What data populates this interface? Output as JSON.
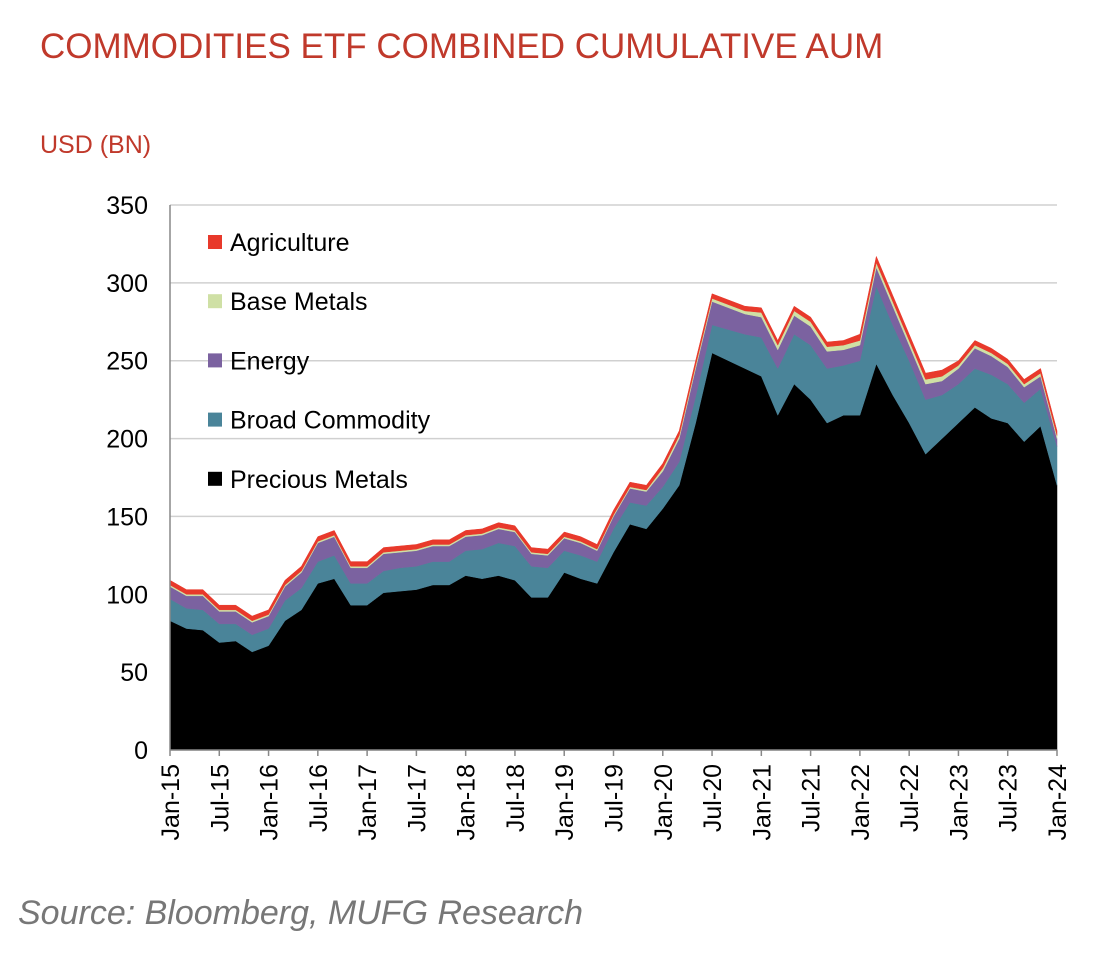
{
  "chart_data": {
    "type": "stacked_area",
    "title": "COMMODITIES ETF COMBINED CUMULATIVE AUM",
    "y_label": "USD (BN)",
    "source": "Source: Bloomberg, MUFG Research",
    "categories": [
      "Jan-15",
      null,
      null,
      "Jul-15",
      null,
      null,
      "Jan-16",
      null,
      null,
      "Jul-16",
      null,
      null,
      "Jan-17",
      null,
      null,
      "Jul-17",
      null,
      null,
      "Jan-18",
      null,
      null,
      "Jul-18",
      null,
      null,
      "Jan-19",
      null,
      null,
      "Jul-19",
      null,
      null,
      "Jan-20",
      null,
      null,
      "Jul-20",
      null,
      null,
      "Jan-21",
      null,
      null,
      "Jul-21",
      null,
      null,
      "Jan-22",
      null,
      null,
      "Jul-22",
      null,
      null,
      "Jan-23",
      null,
      null,
      "Jul-23",
      null,
      null,
      "Jan-24"
    ],
    "series": [
      {
        "name": "Precious Metals",
        "color": "#000000",
        "values": [
          83,
          78,
          77,
          69,
          70,
          63,
          67,
          83,
          90,
          107,
          110,
          93,
          93,
          101,
          102,
          103,
          106,
          106,
          112,
          110,
          112,
          109,
          98,
          98,
          114,
          110,
          107,
          127,
          145,
          142,
          155,
          170,
          210,
          255,
          250,
          245,
          240,
          215,
          235,
          225,
          210,
          215,
          215,
          248,
          228,
          210,
          190,
          200,
          210,
          220,
          213,
          210,
          198,
          208,
          170
        ]
      },
      {
        "name": "Broad Commodity",
        "color": "#4a8499",
        "values": [
          14,
          13,
          13,
          12,
          11,
          11,
          11,
          13,
          14,
          14,
          15,
          14,
          14,
          14,
          15,
          15,
          15,
          15,
          16,
          19,
          21,
          22,
          20,
          19,
          14,
          15,
          14,
          15,
          14,
          15,
          14,
          15,
          17,
          18,
          20,
          22,
          25,
          30,
          32,
          35,
          35,
          32,
          35,
          50,
          45,
          40,
          35,
          28,
          25,
          25,
          28,
          25,
          25,
          24,
          25
        ]
      },
      {
        "name": "Energy",
        "color": "#7b62a0",
        "values": [
          8,
          8,
          9,
          8,
          8,
          8,
          8,
          9,
          10,
          12,
          12,
          10,
          10,
          11,
          10,
          10,
          10,
          10,
          9,
          9,
          9,
          9,
          8,
          8,
          8,
          8,
          7,
          8,
          9,
          9,
          10,
          15,
          18,
          15,
          14,
          13,
          13,
          12,
          12,
          12,
          11,
          10,
          10,
          12,
          12,
          10,
          10,
          9,
          10,
          13,
          12,
          11,
          10,
          8,
          5
        ]
      },
      {
        "name": "Base Metals",
        "color": "#cfe0a5",
        "values": [
          1,
          1,
          1,
          1,
          1,
          1,
          1,
          1,
          1,
          1,
          1,
          1,
          1,
          1,
          1,
          1,
          1,
          1,
          1,
          1,
          1,
          1,
          1,
          1,
          1,
          1,
          1,
          1,
          1,
          1,
          2,
          2,
          2,
          2,
          2,
          2,
          3,
          3,
          3,
          3,
          3,
          3,
          3,
          3,
          3,
          3,
          3,
          3,
          2,
          2,
          2,
          2,
          2,
          2,
          2
        ]
      },
      {
        "name": "Agriculture",
        "color": "#e8392b",
        "values": [
          3,
          3,
          3,
          3,
          3,
          3,
          3,
          3,
          3,
          3,
          3,
          3,
          3,
          3,
          3,
          3,
          3,
          3,
          3,
          3,
          3,
          3,
          3,
          3,
          3,
          3,
          3,
          3,
          3,
          3,
          3,
          3,
          3,
          3,
          3,
          3,
          3,
          3,
          3,
          3,
          3,
          3,
          4,
          4,
          4,
          4,
          4,
          4,
          3,
          3,
          3,
          3,
          3,
          3,
          3
        ]
      }
    ],
    "ylim": [
      0,
      350
    ],
    "yticks": [
      0,
      50,
      100,
      150,
      200,
      250,
      300,
      350
    ],
    "grid": true
  }
}
